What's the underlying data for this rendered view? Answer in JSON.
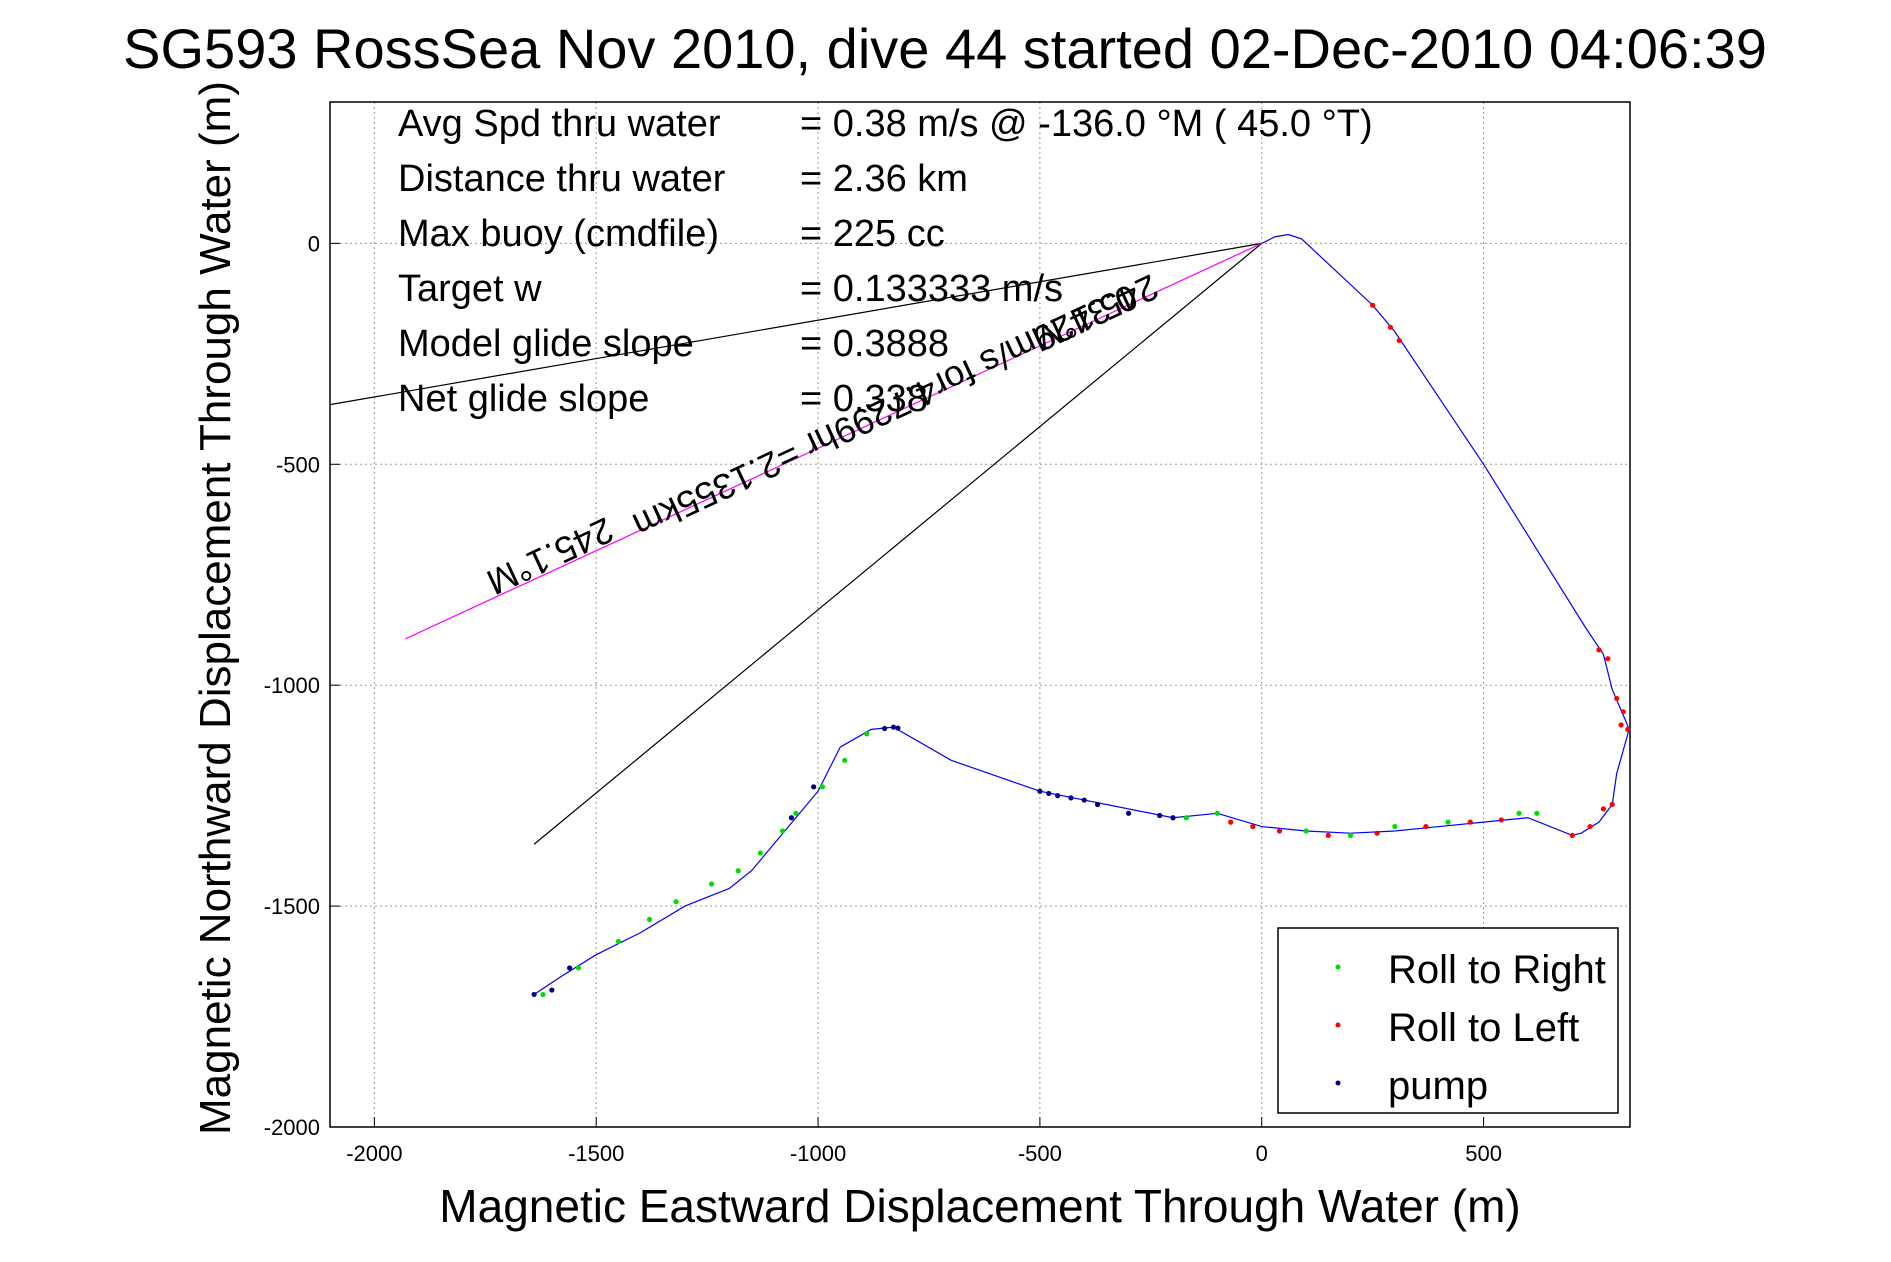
{
  "chart_data": {
    "type": "scatter",
    "title": "SG593 RossSea Nov 2010, dive 44 started 02-Dec-2010 04:06:39",
    "xlabel": "Magnetic Eastward Displacement Through Water (m)",
    "ylabel": "Magnetic Northward Displacement Through Water (m)",
    "xlim": [
      -2100,
      830
    ],
    "ylim": [
      -2000,
      320
    ],
    "xticks": [
      -2000,
      -1500,
      -1000,
      -500,
      0,
      500
    ],
    "yticks": [
      0,
      -500,
      -1000,
      -1500,
      -2000
    ],
    "grid": true,
    "legend_position": "bottom-right",
    "stats": [
      {
        "label": "Avg Spd thru water",
        "value": "=  0.38 m/s @ -136.0 °M ( 45.0 °T)"
      },
      {
        "label": "Distance thru water",
        "value": "=  2.36 km"
      },
      {
        "label": "Max buoy (cmdfile)",
        "value": "= 225 cc"
      },
      {
        "label": "Target w",
        "value": "= 0.133333 m/s"
      },
      {
        "label": "Model glide slope",
        "value": "= 0.3888"
      },
      {
        "label": "Net glide slope",
        "value": "= 0.338"
      }
    ],
    "annotations": [
      {
        "text": "0.3429m/s for4.7299hr =2.1355km",
        "color": "#000000"
      },
      {
        "text": "245.1°M",
        "color": "#000000"
      },
      {
        "text": "245.1°M",
        "color": "#000000"
      }
    ],
    "reference_lines": [
      {
        "name": "",
        "color": "#000000",
        "x": [
          0,
          -2100
        ],
        "y": [
          0,
          -365
        ]
      },
      {
        "name": "",
        "color": "#000000",
        "x": [
          0,
          -1640
        ],
        "y": [
          0,
          -1360
        ]
      },
      {
        "name": "",
        "color": "#ff00ff",
        "x": [
          0,
          -1930
        ],
        "y": [
          0,
          -895
        ]
      }
    ],
    "track": {
      "name": "",
      "color": "#0000ff",
      "x": [
        0,
        30,
        60,
        90,
        250,
        300,
        320,
        500,
        730,
        770,
        790,
        820,
        828,
        800,
        790,
        760,
        720,
        700,
        600,
        500,
        400,
        300,
        200,
        100,
        0,
        -100,
        -200,
        -500,
        -700,
        -830,
        -880,
        -950,
        -1000,
        -1050,
        -1100,
        -1150,
        -1200,
        -1300,
        -1400,
        -1500,
        -1580,
        -1640
      ],
      "y": [
        0,
        15,
        20,
        10,
        -140,
        -200,
        -230,
        -500,
        -870,
        -930,
        -1010,
        -1080,
        -1100,
        -1200,
        -1270,
        -1310,
        -1335,
        -1340,
        -1300,
        -1310,
        -1320,
        -1330,
        -1335,
        -1330,
        -1320,
        -1290,
        -1300,
        -1240,
        -1170,
        -1095,
        -1100,
        -1140,
        -1240,
        -1300,
        -1360,
        -1420,
        -1460,
        -1500,
        -1560,
        -1610,
        -1660,
        -1700
      ]
    },
    "series": [
      {
        "name": "Roll to Right",
        "color": "#00dd00",
        "x": [
          -1620,
          -1540,
          -1450,
          -1380,
          -1320,
          -1240,
          -1180,
          -1130,
          -1080,
          -1050,
          -990,
          -940,
          -890,
          -170,
          -100,
          100,
          200,
          300,
          420,
          580,
          620
        ],
        "y": [
          -1700,
          -1640,
          -1580,
          -1530,
          -1490,
          -1450,
          -1420,
          -1380,
          -1330,
          -1290,
          -1230,
          -1170,
          -1110,
          -1300,
          -1290,
          -1330,
          -1340,
          -1320,
          -1310,
          -1290,
          -1290
        ]
      },
      {
        "name": "Roll to Left",
        "color": "#ff0000",
        "x": [
          -70,
          -20,
          40,
          150,
          260,
          370,
          470,
          540,
          700,
          740,
          770,
          790,
          800,
          815,
          825,
          810,
          780,
          760,
          250,
          290,
          310
        ],
        "y": [
          -1310,
          -1320,
          -1330,
          -1340,
          -1335,
          -1320,
          -1310,
          -1305,
          -1340,
          -1320,
          -1280,
          -1270,
          -1030,
          -1060,
          -1100,
          -1090,
          -940,
          -920,
          -140,
          -190,
          -220
        ]
      },
      {
        "name": "pump",
        "color": "#000080",
        "x": [
          -500,
          -480,
          -460,
          -430,
          -400,
          -370,
          -300,
          -230,
          -200,
          -830,
          -820,
          -850,
          -1010,
          -1060,
          -1560,
          -1640,
          -1600
        ],
        "y": [
          -1240,
          -1245,
          -1250,
          -1255,
          -1260,
          -1270,
          -1290,
          -1295,
          -1300,
          -1095,
          -1097,
          -1098,
          -1230,
          -1300,
          -1640,
          -1700,
          -1690
        ]
      }
    ]
  }
}
